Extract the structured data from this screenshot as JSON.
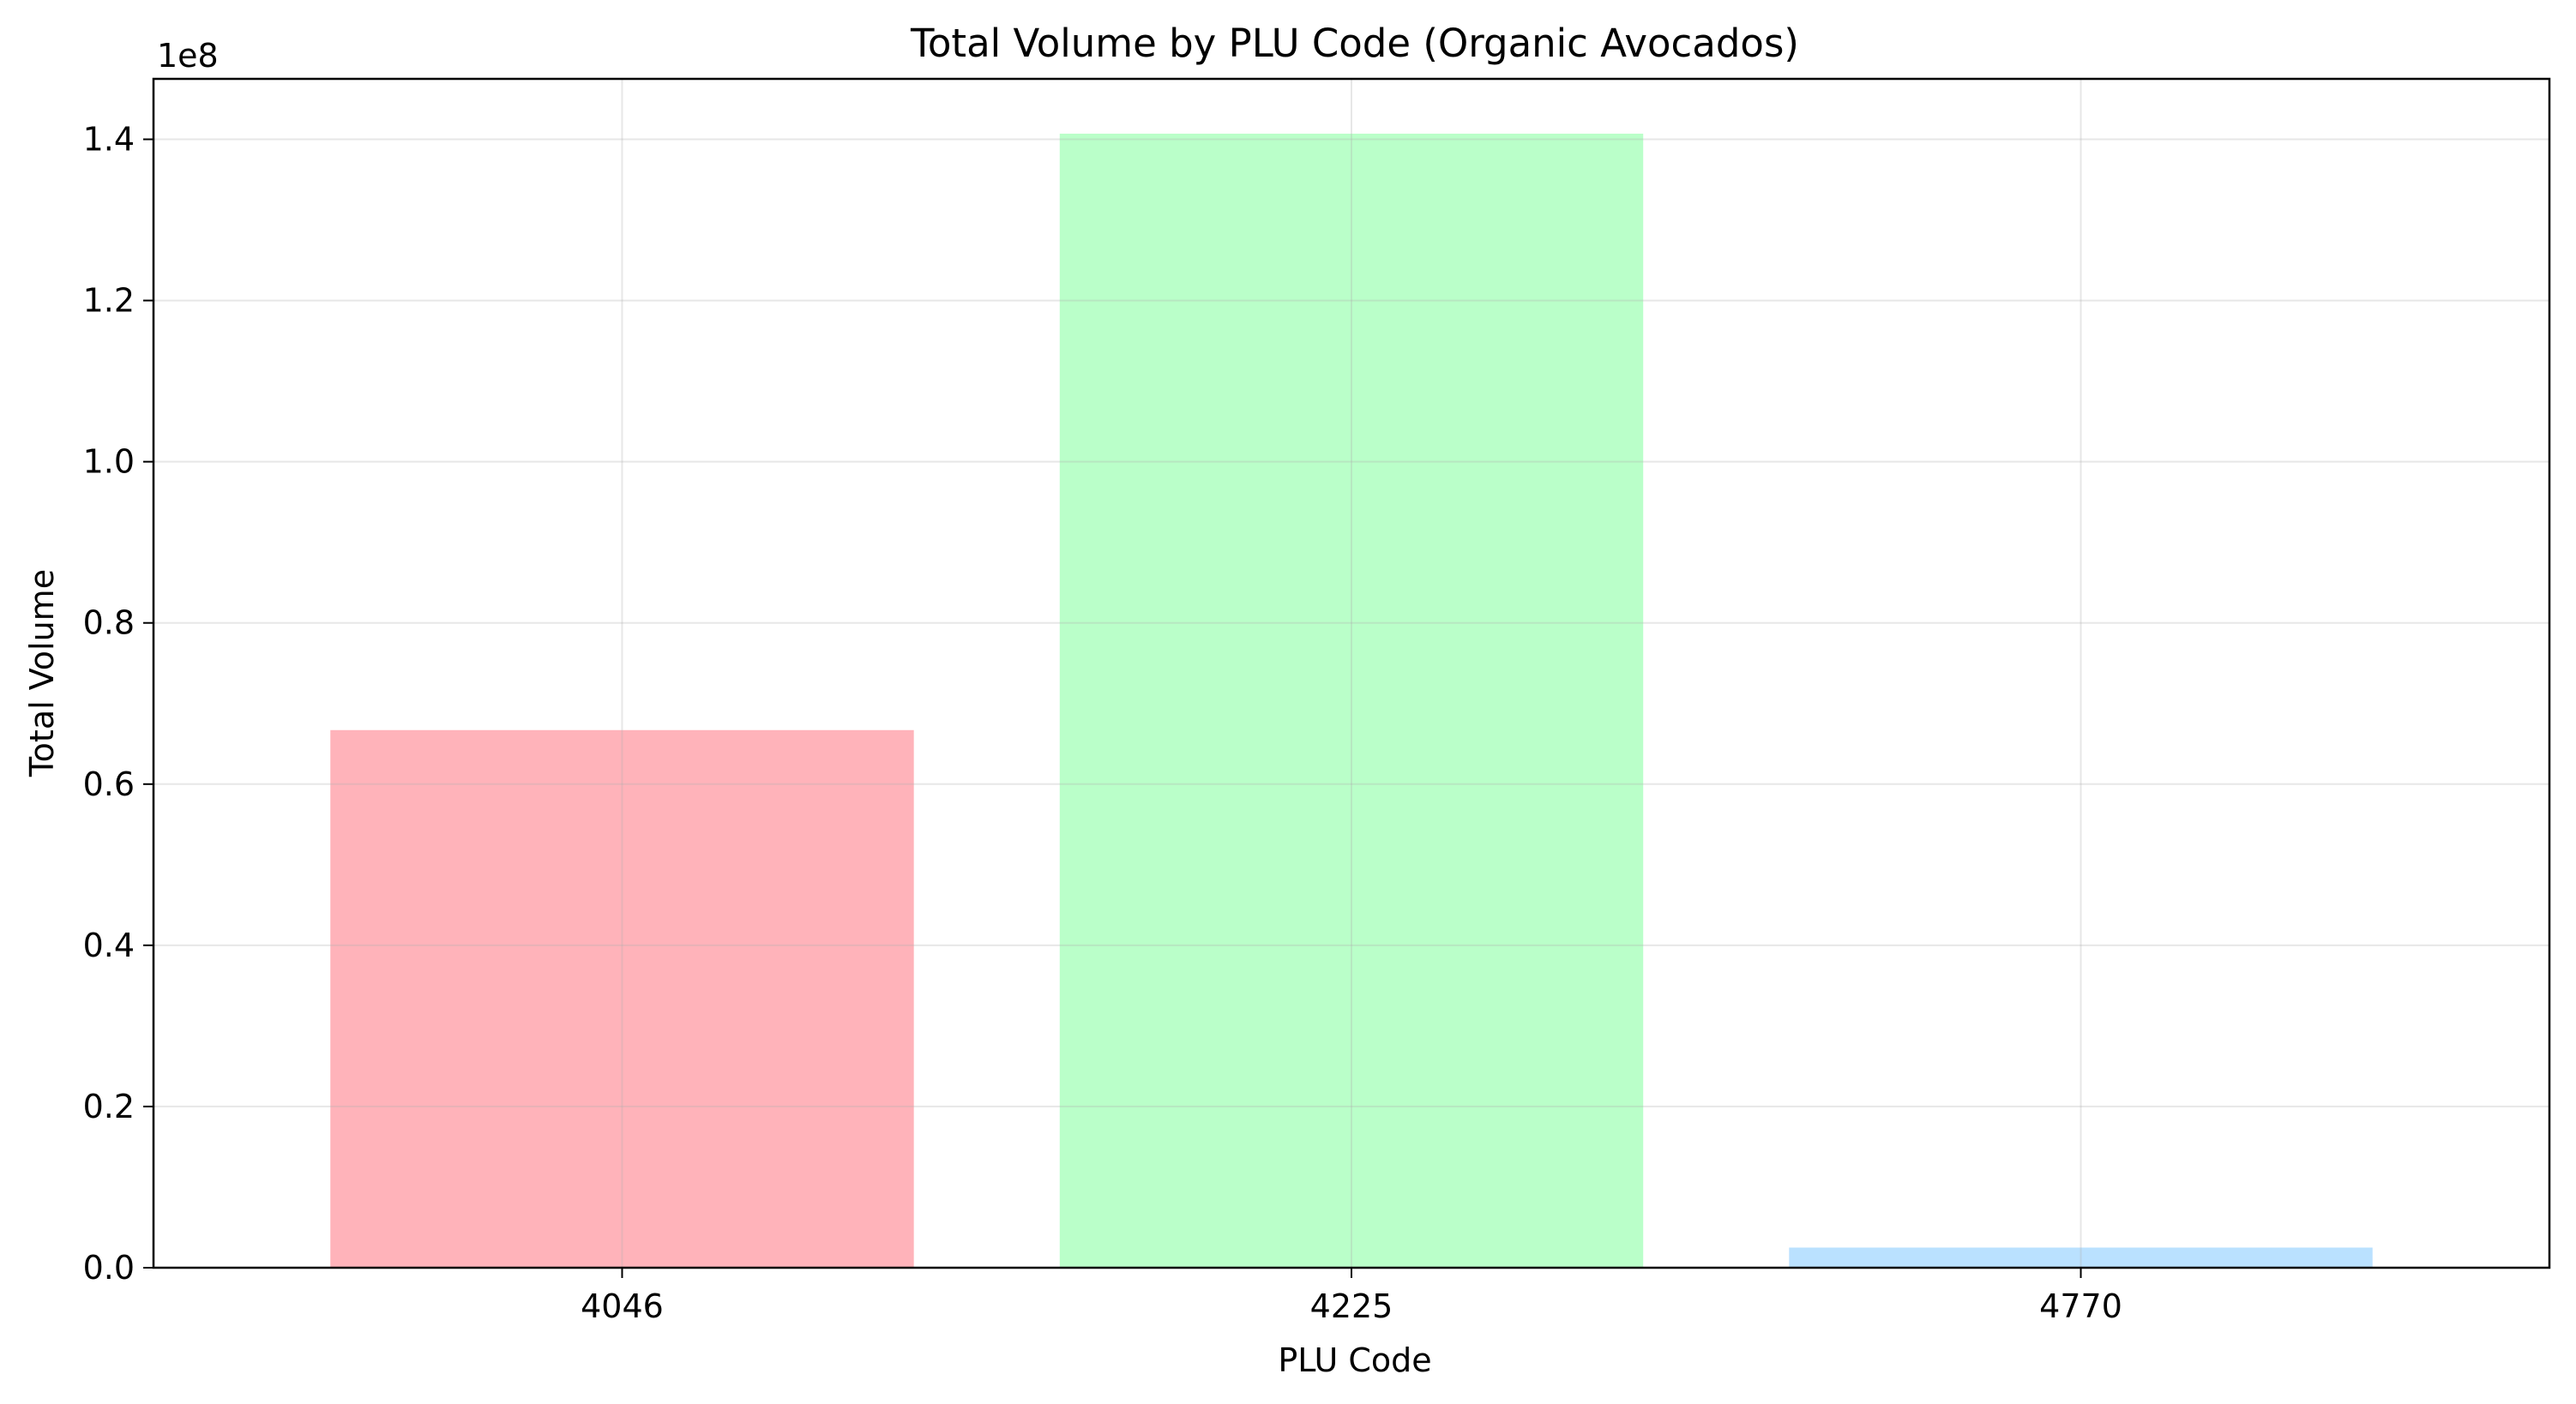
{
  "chart_data": {
    "type": "bar",
    "title": "Total Volume by PLU Code (Organic Avocados)",
    "xlabel": "PLU Code",
    "ylabel": "Total Volume",
    "y_offset_label": "1e8",
    "categories": [
      "4046",
      "4225",
      "4770"
    ],
    "values": [
      66700000,
      140700000,
      2500000
    ],
    "colors": [
      "#ffb3ba",
      "#baffc9",
      "#bae1ff"
    ],
    "ylim": [
      0,
      147500000
    ],
    "yticks": [
      0,
      20000000,
      40000000,
      60000000,
      80000000,
      100000000,
      120000000,
      140000000
    ],
    "ytick_labels": [
      "0.0",
      "0.2",
      "0.4",
      "0.6",
      "0.8",
      "1.0",
      "1.2",
      "1.4"
    ],
    "grid": true,
    "legend": "none"
  }
}
